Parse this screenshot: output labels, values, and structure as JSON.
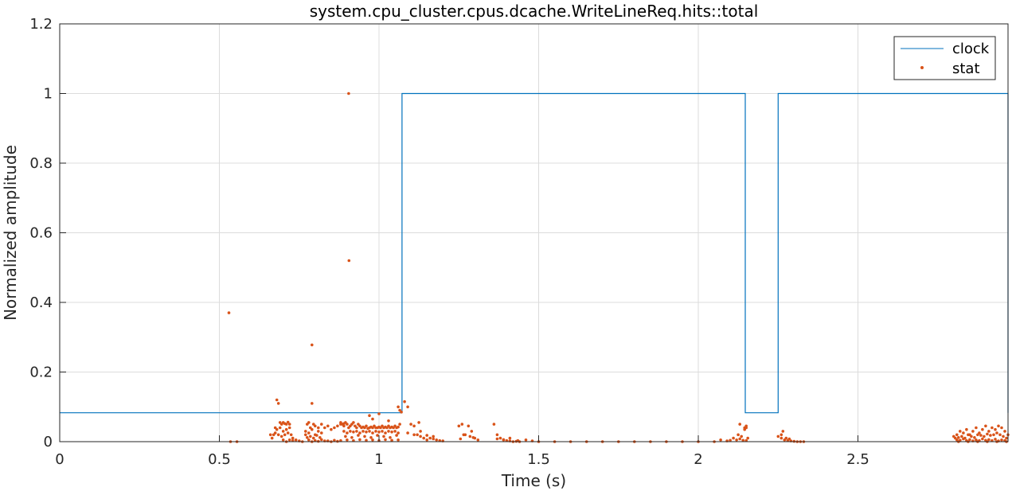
{
  "chart_data": {
    "type": "line",
    "title": "system.cpu_cluster.cpus.dcache.WriteLineReq.hits::total",
    "xlabel": "Time (s)",
    "ylabel": "Normalized amplitude",
    "xlim": [
      0,
      2.97
    ],
    "ylim": [
      0,
      1.2
    ],
    "xticks": [
      0,
      0.5,
      1,
      1.5,
      2,
      2.5
    ],
    "xtick_labels": [
      "0",
      "0.5",
      "1",
      "1.5",
      "2",
      "2.5"
    ],
    "yticks": [
      0,
      0.2,
      0.4,
      0.6,
      0.8,
      1,
      1.2
    ],
    "ytick_labels": [
      "0",
      "0.2",
      "0.4",
      "0.6",
      "0.8",
      "1",
      "1.2"
    ],
    "grid": true,
    "legend_position": "top-right",
    "series": [
      {
        "name": "clock",
        "kind": "step-line",
        "color": "#0072BD",
        "x": [
          0,
          1.072,
          1.072,
          2.147,
          2.147,
          2.25,
          2.25,
          2.97,
          2.97
        ],
        "y": [
          0.083,
          0.083,
          1,
          1,
          0.083,
          0.083,
          1,
          1,
          0.083
        ]
      },
      {
        "name": "stat",
        "kind": "scatter",
        "color": "#D95319",
        "x": [
          0.53,
          0.535,
          0.555,
          0.79,
          0.905,
          0.906,
          0.68,
          0.685,
          0.69,
          0.695,
          0.7,
          0.705,
          0.71,
          0.715,
          0.72,
          0.675,
          0.68,
          0.69,
          0.7,
          0.71,
          0.72,
          0.67,
          0.675,
          0.685,
          0.695,
          0.705,
          0.715,
          0.725,
          0.73,
          0.66,
          0.665,
          0.7,
          0.71,
          0.72,
          0.73,
          0.74,
          0.75,
          0.76,
          0.77,
          0.775,
          0.78,
          0.785,
          0.79,
          0.795,
          0.8,
          0.81,
          0.82,
          0.83,
          0.84,
          0.85,
          0.86,
          0.87,
          0.88,
          0.89,
          0.77,
          0.78,
          0.79,
          0.8,
          0.81,
          0.82,
          0.775,
          0.785,
          0.795,
          0.805,
          0.815,
          0.78,
          0.8,
          0.82,
          0.84,
          0.86,
          0.88,
          0.79,
          0.81,
          0.83,
          0.85,
          0.87,
          0.88,
          0.885,
          0.89,
          0.895,
          0.9,
          0.905,
          0.91,
          0.915,
          0.92,
          0.925,
          0.93,
          0.935,
          0.94,
          0.945,
          0.95,
          0.955,
          0.96,
          0.965,
          0.97,
          0.975,
          0.98,
          0.985,
          0.99,
          0.995,
          1.0,
          1.005,
          1.01,
          1.015,
          1.02,
          1.025,
          1.03,
          1.035,
          1.04,
          1.045,
          1.05,
          1.055,
          1.06,
          1.065,
          0.89,
          0.9,
          0.91,
          0.92,
          0.93,
          0.94,
          0.95,
          0.96,
          0.97,
          0.98,
          0.99,
          1.0,
          1.01,
          1.02,
          1.03,
          1.04,
          1.05,
          1.06,
          0.895,
          0.915,
          0.935,
          0.955,
          0.975,
          0.995,
          1.015,
          1.035,
          1.055,
          0.9,
          0.92,
          0.94,
          0.96,
          0.98,
          1.0,
          1.02,
          1.04,
          1.06,
          0.97,
          0.98,
          1.0,
          1.06,
          1.065,
          1.07,
          1.03,
          1.08,
          1.09,
          1.1,
          1.11,
          1.12,
          1.13,
          1.14,
          1.15,
          1.16,
          1.17,
          1.18,
          1.19,
          1.2,
          1.09,
          1.11,
          1.13,
          1.15,
          1.17,
          1.125,
          1.25,
          1.26,
          1.27,
          1.28,
          1.29,
          1.3,
          1.31,
          1.265,
          1.285,
          1.255,
          1.295,
          1.36,
          1.37,
          1.38,
          1.39,
          1.4,
          1.41,
          1.42,
          1.43,
          1.44,
          1.37,
          1.39,
          1.41,
          1.435,
          1.46,
          1.48,
          1.5,
          1.55,
          1.6,
          1.65,
          1.7,
          1.75,
          1.8,
          1.85,
          1.9,
          1.95,
          2.0,
          2.05,
          2.07,
          2.09,
          2.1,
          2.11,
          2.12,
          2.125,
          2.13,
          2.135,
          2.14,
          2.145,
          2.15,
          2.155,
          2.13,
          2.145,
          2.15,
          2.15,
          2.25,
          2.26,
          2.27,
          2.28,
          2.29,
          2.3,
          2.31,
          2.32,
          2.33,
          2.26,
          2.275,
          2.285,
          2.265,
          2.8,
          2.81,
          2.82,
          2.83,
          2.84,
          2.85,
          2.86,
          2.87,
          2.88,
          2.89,
          2.9,
          2.91,
          2.92,
          2.93,
          2.94,
          2.95,
          2.96,
          2.97,
          2.805,
          2.815,
          2.825,
          2.835,
          2.845,
          2.855,
          2.865,
          2.875,
          2.885,
          2.895,
          2.905,
          2.915,
          2.925,
          2.935,
          2.945,
          2.955,
          2.965,
          2.81,
          2.83,
          2.85,
          2.87,
          2.89,
          2.91,
          2.93,
          2.95,
          2.82,
          2.84,
          2.86,
          2.88,
          2.9,
          2.92,
          2.94,
          2.96,
          2.815,
          2.845,
          2.875,
          2.905,
          2.935,
          2.965
        ],
        "y": [
          0.37,
          0.0,
          0.0,
          0.278,
          1.0,
          0.52,
          0.12,
          0.11,
          0.055,
          0.05,
          0.055,
          0.052,
          0.05,
          0.056,
          0.05,
          0.04,
          0.035,
          0.04,
          0.03,
          0.035,
          0.04,
          0.02,
          0.025,
          0.02,
          0.015,
          0.02,
          0.025,
          0.02,
          0.01,
          0.02,
          0.01,
          0.005,
          0.0,
          0.005,
          0.003,
          0.005,
          0.002,
          0.0,
          0.02,
          0.05,
          0.055,
          0.04,
          0.11,
          0.05,
          0.045,
          0.04,
          0.05,
          0.04,
          0.045,
          0.035,
          0.04,
          0.045,
          0.05,
          0.045,
          0.03,
          0.025,
          0.035,
          0.02,
          0.03,
          0.025,
          0.012,
          0.015,
          0.01,
          0.018,
          0.012,
          0.005,
          0.003,
          0.006,
          0.002,
          0.004,
          0.003,
          0.0,
          0.001,
          0.002,
          0.0,
          0.001,
          0.055,
          0.05,
          0.052,
          0.055,
          0.05,
          0.04,
          0.045,
          0.05,
          0.055,
          0.045,
          0.04,
          0.05,
          0.045,
          0.04,
          0.042,
          0.04,
          0.045,
          0.038,
          0.04,
          0.042,
          0.04,
          0.045,
          0.04,
          0.04,
          0.042,
          0.04,
          0.045,
          0.04,
          0.042,
          0.04,
          0.045,
          0.04,
          0.042,
          0.04,
          0.045,
          0.04,
          0.042,
          0.05,
          0.03,
          0.025,
          0.03,
          0.028,
          0.03,
          0.025,
          0.03,
          0.028,
          0.03,
          0.025,
          0.03,
          0.028,
          0.03,
          0.025,
          0.03,
          0.028,
          0.03,
          0.025,
          0.015,
          0.012,
          0.018,
          0.015,
          0.012,
          0.018,
          0.015,
          0.012,
          0.018,
          0.005,
          0.003,
          0.006,
          0.004,
          0.005,
          0.003,
          0.006,
          0.004,
          0.005,
          0.075,
          0.065,
          0.08,
          0.1,
          0.09,
          0.085,
          0.06,
          0.115,
          0.1,
          0.05,
          0.045,
          0.02,
          0.015,
          0.01,
          0.005,
          0.01,
          0.008,
          0.005,
          0.003,
          0.002,
          0.025,
          0.02,
          0.03,
          0.018,
          0.015,
          0.055,
          0.045,
          0.05,
          0.02,
          0.045,
          0.03,
          0.01,
          0.005,
          0.02,
          0.015,
          0.008,
          0.012,
          0.05,
          0.02,
          0.01,
          0.005,
          0.003,
          0.002,
          0.0,
          0.001,
          0.0,
          0.008,
          0.006,
          0.01,
          0.003,
          0.005,
          0.002,
          0.0,
          0.0,
          0.0,
          0.0,
          0.0,
          0.0,
          0.0,
          0.0,
          0.0,
          0.0,
          0.0,
          0.0,
          0.005,
          0.002,
          0.004,
          0.01,
          0.005,
          0.02,
          0.008,
          0.015,
          0.004,
          0.035,
          0.003,
          0.01,
          0.05,
          0.04,
          0.045,
          0.04,
          0.015,
          0.01,
          0.005,
          0.003,
          0.002,
          0.001,
          0.0,
          0.0,
          0.0,
          0.02,
          0.01,
          0.008,
          0.03,
          0.015,
          0.02,
          0.03,
          0.025,
          0.035,
          0.02,
          0.03,
          0.04,
          0.025,
          0.035,
          0.045,
          0.03,
          0.04,
          0.035,
          0.045,
          0.04,
          0.03,
          0.02,
          0.01,
          0.012,
          0.015,
          0.01,
          0.02,
          0.015,
          0.012,
          0.02,
          0.018,
          0.015,
          0.022,
          0.018,
          0.02,
          0.025,
          0.02,
          0.015,
          0.01,
          0.005,
          0.008,
          0.006,
          0.005,
          0.008,
          0.006,
          0.007,
          0.005,
          0.004,
          0.003,
          0.002,
          0.003,
          0.004,
          0.003,
          0.002,
          0.003,
          0.0,
          0.0,
          0.0,
          0.0,
          0.0,
          0.0
        ]
      }
    ]
  }
}
